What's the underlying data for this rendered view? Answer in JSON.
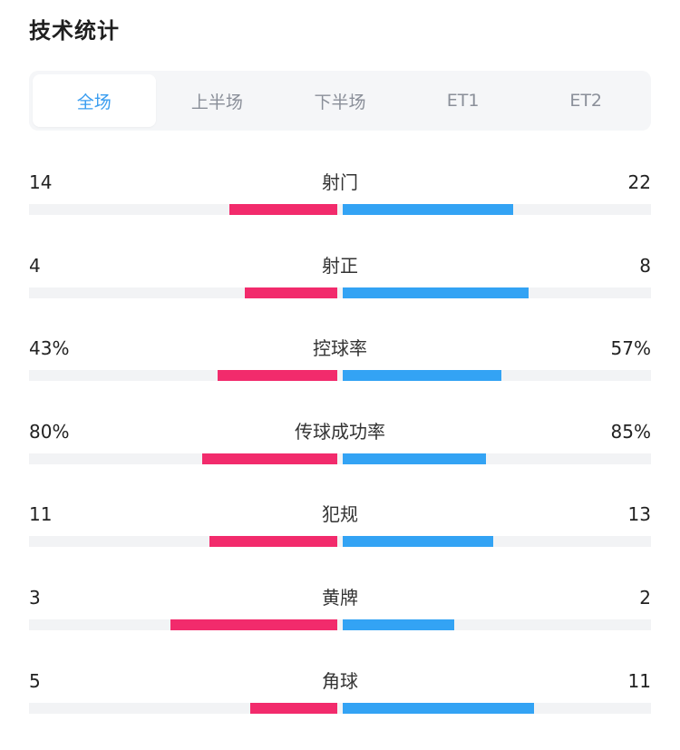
{
  "header": {
    "title": "技术统计"
  },
  "tabs": [
    {
      "label": "全场",
      "active": true
    },
    {
      "label": "上半场",
      "active": false
    },
    {
      "label": "下半场",
      "active": false
    },
    {
      "label": "ET1",
      "active": false
    },
    {
      "label": "ET2",
      "active": false
    }
  ],
  "colors": {
    "home_bar": "#f22b6c",
    "away_bar": "#33a3f4",
    "active_tab": "#3a9df0",
    "track": "#f2f3f5"
  },
  "stats": [
    {
      "label": "射门",
      "home": "14",
      "away": "22",
      "home_share": 0.389,
      "away_share": 0.611
    },
    {
      "label": "射正",
      "home": "4",
      "away": "8",
      "home_share": 0.333,
      "away_share": 0.667
    },
    {
      "label": "控球率",
      "home": "43%",
      "away": "57%",
      "home_share": 0.43,
      "away_share": 0.57
    },
    {
      "label": "传球成功率",
      "home": "80%",
      "away": "85%",
      "home_share": 0.485,
      "away_share": 0.515
    },
    {
      "label": "犯规",
      "home": "11",
      "away": "13",
      "home_share": 0.458,
      "away_share": 0.542
    },
    {
      "label": "黄牌",
      "home": "3",
      "away": "2",
      "home_share": 0.6,
      "away_share": 0.4
    },
    {
      "label": "角球",
      "home": "5",
      "away": "11",
      "home_share": 0.313,
      "away_share": 0.687
    }
  ]
}
